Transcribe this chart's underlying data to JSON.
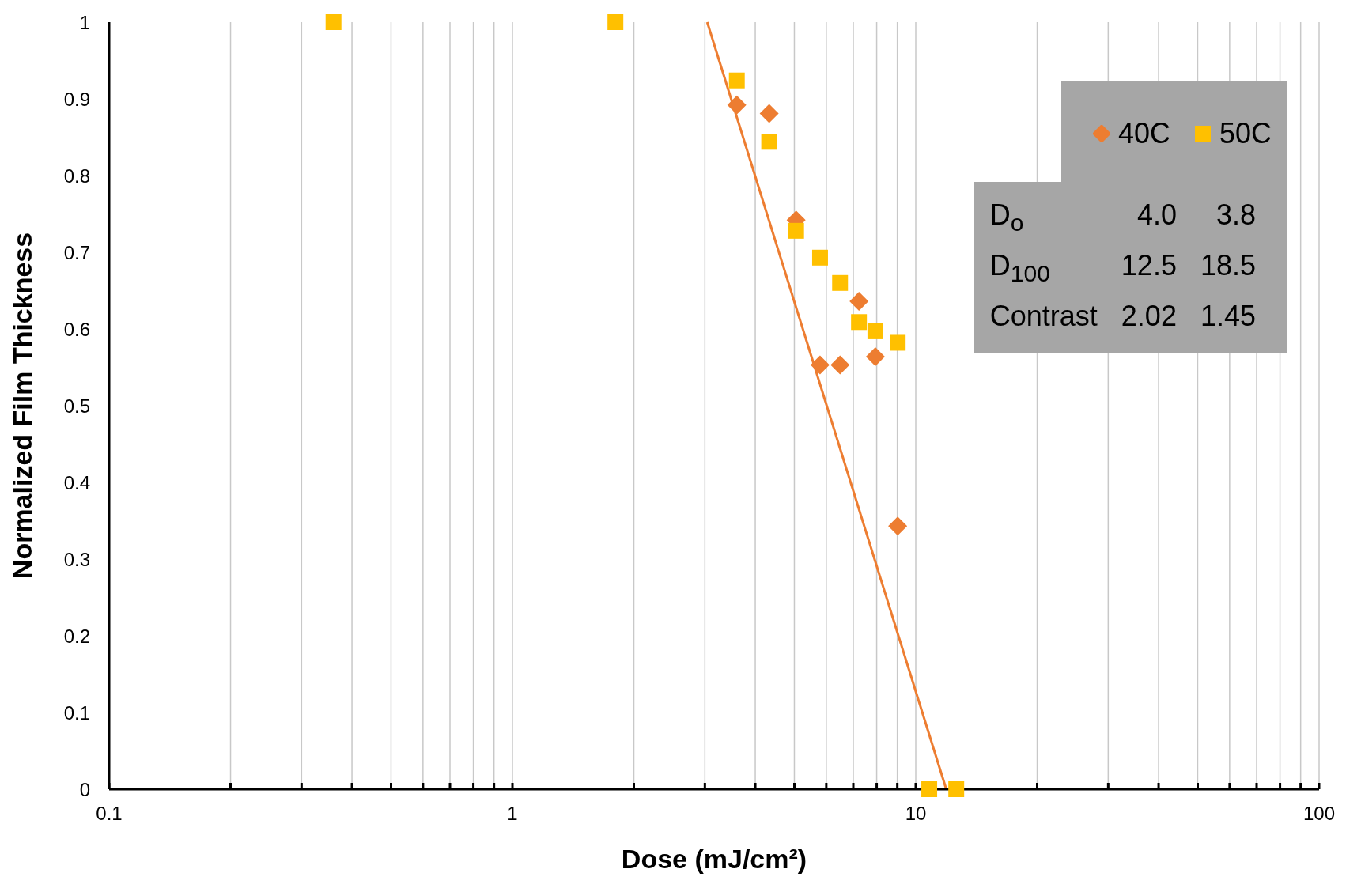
{
  "chart_data": {
    "type": "scatter",
    "xlabel": "Dose (mJ/cm²)",
    "ylabel": "Normalized Film Thickness",
    "log": "x",
    "grid": "x",
    "legend": "top right",
    "xlim": [
      0.1,
      100
    ],
    "xticks": [
      0.1,
      {
        "value": 0.2,
        "label": null
      },
      {
        "value": 0.3,
        "label": null
      },
      {
        "value": 0.4,
        "label": null
      },
      {
        "value": 0.5,
        "label": null
      },
      {
        "value": 0.6,
        "label": null
      },
      {
        "value": 0.7,
        "label": null
      },
      {
        "value": 0.8,
        "label": null
      },
      {
        "value": 0.9,
        "label": null
      },
      1,
      {
        "value": 2,
        "label": null
      },
      {
        "value": 3,
        "label": null
      },
      {
        "value": 4,
        "label": null
      },
      {
        "value": 5,
        "label": null
      },
      {
        "value": 6,
        "label": null
      },
      {
        "value": 7,
        "label": null
      },
      {
        "value": 8,
        "label": null
      },
      {
        "value": 9,
        "label": null
      },
      10,
      {
        "value": 20,
        "label": null
      },
      {
        "value": 30,
        "label": null
      },
      {
        "value": 40,
        "label": null
      },
      {
        "value": 50,
        "label": null
      },
      {
        "value": 60,
        "label": null
      },
      {
        "value": 70,
        "label": null
      },
      {
        "value": 80,
        "label": null
      },
      {
        "value": 90,
        "label": null
      },
      100
    ],
    "ylim": [
      0,
      1
    ],
    "yticks": [
      0,
      0.1,
      0.2,
      0.3,
      0.4,
      0.5,
      0.6,
      0.7,
      0.8,
      0.9,
      1
    ],
    "series": [
      {
        "name": "40C",
        "color": "#ed7d31",
        "marker": "diamond",
        "x": [
          3.6,
          4.33,
          5.05,
          5.79,
          6.49,
          7.23,
          7.94,
          9.02
        ],
        "values": [
          0.892,
          0.881,
          0.742,
          0.553,
          0.553,
          0.636,
          0.564,
          0.343
        ]
      },
      {
        "name": "50C",
        "color": "#ffc000",
        "marker": "square",
        "x": [
          0.36,
          1.8,
          3.6,
          4.33,
          5.05,
          5.79,
          6.49,
          7.23,
          7.94,
          9.02,
          10.8,
          12.6
        ],
        "values": [
          1,
          1,
          0.924,
          0.844,
          0.728,
          0.693,
          0.66,
          0.609,
          0.597,
          0.582,
          0,
          0
        ]
      },
      {
        "type": "line",
        "color": "#ed7d31",
        "marker": "none",
        "x": [
          3.04,
          11.9
        ],
        "values": [
          1,
          0
        ]
      }
    ],
    "annotations": [
      "D$_{o}$",
      "4.0",
      "3.8",
      "D$_{100}$",
      "12.5",
      "18.5",
      "Contrast",
      "2.02",
      "1.45"
    ]
  }
}
